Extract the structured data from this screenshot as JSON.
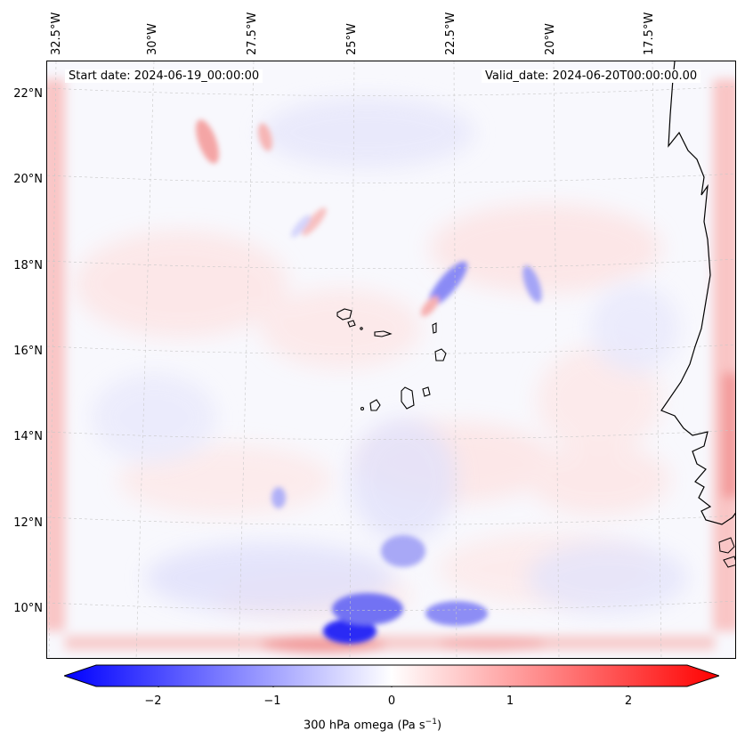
{
  "map": {
    "start_date": "Start date: 2024-06-19_00:00:00",
    "valid_date": "Valid_date: 2024-06-20T00:00:00.00",
    "field": "300 hPa omega",
    "units": "Pa s⁻¹",
    "longitude_labels": [
      "32.5°W",
      "30°W",
      "27.5°W",
      "25°W",
      "22.5°W",
      "20°W",
      "17.5°W"
    ],
    "latitude_labels": [
      "22°N",
      "20°N",
      "18°N",
      "16°N",
      "14°N",
      "12°N",
      "10°N"
    ],
    "colormap": {
      "negative": "#0000ff",
      "zero": "#ffffff",
      "positive": "#ff0000"
    },
    "coast_color": "#000000",
    "grid_color": "#c8c8c8"
  },
  "colorbar": {
    "ticks": [
      "−2",
      "−1",
      "0",
      "1",
      "2"
    ],
    "min": -2.7,
    "max": 2.7,
    "label_prefix": "300 hPa omega (Pa s",
    "label_sup": "−1",
    "label_suffix": ")"
  }
}
